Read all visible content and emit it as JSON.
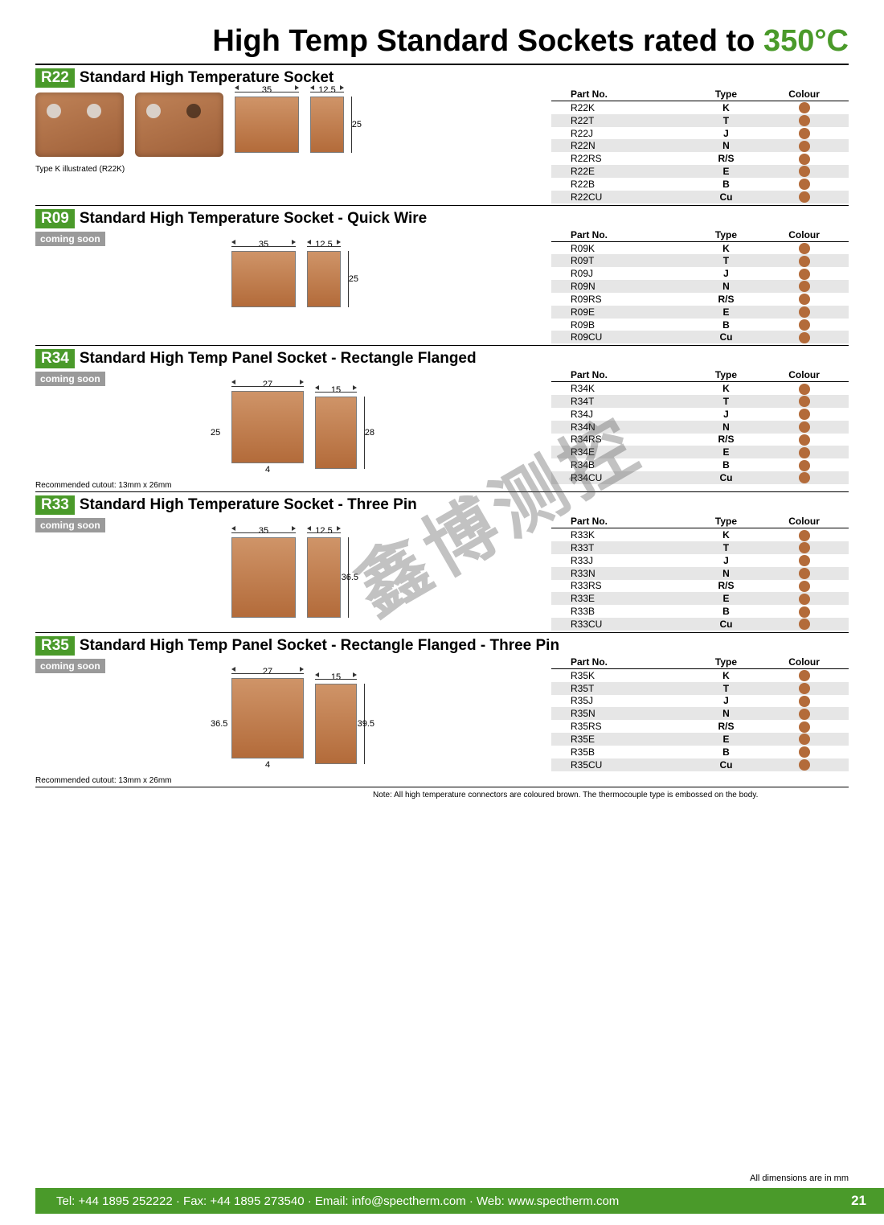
{
  "colors": {
    "accent": "#4a9a2a",
    "dot": "#b36b3a",
    "row_alt": "#e6e6e6",
    "badge_gray": "#9a9a9a"
  },
  "title": {
    "main": "High Temp Standard Sockets rated to ",
    "temp": "350°C"
  },
  "headers": {
    "part": "Part No.",
    "type": "Type",
    "colour": "Colour"
  },
  "badges": {
    "coming_soon": "coming soon"
  },
  "note": "Note: All high temperature connectors are coloured brown. The thermocouple type is embossed on the body.",
  "dims_note": "All dimensions are in mm",
  "footer": {
    "text": "Tel: +44 1895 252222  ·  Fax: +44 1895 273540  ·  Email: info@spectherm.com  ·  Web: www.spectherm.com",
    "page": "21"
  },
  "watermark": "鑫博测控",
  "sections": [
    {
      "code": "R22",
      "title": "Standard High Temperature Socket",
      "coming_soon": false,
      "caption": "Type K illustrated (R22K)",
      "dims": {
        "w": "35",
        "side_w": "12.5",
        "h": "25"
      },
      "show_photos": true,
      "panel": false,
      "three_pin": false,
      "rows": [
        {
          "pn": "R22K",
          "type": "K"
        },
        {
          "pn": "R22T",
          "type": "T"
        },
        {
          "pn": "R22J",
          "type": "J"
        },
        {
          "pn": "R22N",
          "type": "N"
        },
        {
          "pn": "R22RS",
          "type": "R/S"
        },
        {
          "pn": "R22E",
          "type": "E"
        },
        {
          "pn": "R22B",
          "type": "B"
        },
        {
          "pn": "R22CU",
          "type": "Cu"
        }
      ]
    },
    {
      "code": "R09",
      "title": "Standard High Temperature Socket - Quick Wire",
      "coming_soon": true,
      "dims": {
        "w": "35",
        "side_w": "12.5",
        "h": "25"
      },
      "show_photos": false,
      "panel": false,
      "three_pin": false,
      "rows": [
        {
          "pn": "R09K",
          "type": "K"
        },
        {
          "pn": "R09T",
          "type": "T"
        },
        {
          "pn": "R09J",
          "type": "J"
        },
        {
          "pn": "R09N",
          "type": "N"
        },
        {
          "pn": "R09RS",
          "type": "R/S"
        },
        {
          "pn": "R09E",
          "type": "E"
        },
        {
          "pn": "R09B",
          "type": "B"
        },
        {
          "pn": "R09CU",
          "type": "Cu"
        }
      ]
    },
    {
      "code": "R34",
      "title": "Standard High Temp Panel Socket - Rectangle Flanged",
      "coming_soon": true,
      "cutout": "Recommended cutout: 13mm x 26mm",
      "dims": {
        "w": "27",
        "side_w": "15",
        "h_left": "25",
        "h": "28",
        "base": "4"
      },
      "show_photos": false,
      "panel": true,
      "three_pin": false,
      "rows": [
        {
          "pn": "R34K",
          "type": "K"
        },
        {
          "pn": "R34T",
          "type": "T"
        },
        {
          "pn": "R34J",
          "type": "J"
        },
        {
          "pn": "R34N",
          "type": "N"
        },
        {
          "pn": "R34RS",
          "type": "R/S"
        },
        {
          "pn": "R34E",
          "type": "E"
        },
        {
          "pn": "R34B",
          "type": "B"
        },
        {
          "pn": "R34CU",
          "type": "Cu"
        }
      ]
    },
    {
      "code": "R33",
      "title": "Standard High Temperature Socket - Three Pin",
      "coming_soon": true,
      "dims": {
        "w": "35",
        "side_w": "12.5",
        "h": "36.5"
      },
      "show_photos": false,
      "panel": false,
      "three_pin": true,
      "rows": [
        {
          "pn": "R33K",
          "type": "K"
        },
        {
          "pn": "R33T",
          "type": "T"
        },
        {
          "pn": "R33J",
          "type": "J"
        },
        {
          "pn": "R33N",
          "type": "N"
        },
        {
          "pn": "R33RS",
          "type": "R/S"
        },
        {
          "pn": "R33E",
          "type": "E"
        },
        {
          "pn": "R33B",
          "type": "B"
        },
        {
          "pn": "R33CU",
          "type": "Cu"
        }
      ]
    },
    {
      "code": "R35",
      "title": "Standard High Temp Panel Socket - Rectangle Flanged - Three Pin",
      "coming_soon": true,
      "cutout": "Recommended cutout: 13mm x 26mm",
      "dims": {
        "w": "27",
        "side_w": "15",
        "h_left": "36.5",
        "h": "39.5",
        "base": "4"
      },
      "show_photos": false,
      "panel": true,
      "three_pin": true,
      "rows": [
        {
          "pn": "R35K",
          "type": "K"
        },
        {
          "pn": "R35T",
          "type": "T"
        },
        {
          "pn": "R35J",
          "type": "J"
        },
        {
          "pn": "R35N",
          "type": "N"
        },
        {
          "pn": "R35RS",
          "type": "R/S"
        },
        {
          "pn": "R35E",
          "type": "E"
        },
        {
          "pn": "R35B",
          "type": "B"
        },
        {
          "pn": "R35CU",
          "type": "Cu"
        }
      ]
    }
  ]
}
